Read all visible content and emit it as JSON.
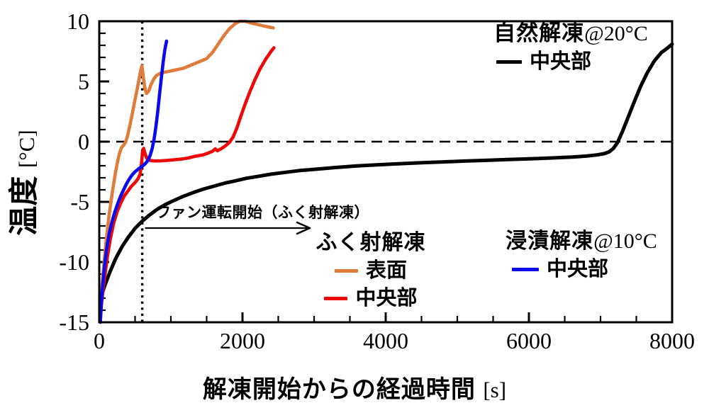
{
  "annotation": {
    "text": "ファン運転開始（ふく射解凍）"
  },
  "legends": {
    "natural": {
      "title_main": "自然解凍",
      "title_at": "@20°C",
      "item": "中央部",
      "color": "#000000"
    },
    "radiation": {
      "title": "ふく射解凍",
      "items": [
        {
          "label": "表面",
          "color": "#E07B3C"
        },
        {
          "label": "中央部",
          "color": "#EE0808"
        }
      ]
    },
    "immersion": {
      "title_main": "浸漬解凍",
      "title_at": "@10°C",
      "item": "中央部",
      "color": "#0A0AEC"
    }
  },
  "axis": {
    "xlabel_main": "解凍開始からの経過時間",
    "xlabel_unit": "[s]",
    "ylabel_main": "温度",
    "ylabel_unit": "[°C]"
  },
  "chart_data": {
    "type": "line",
    "title": "",
    "xlabel": "解凍開始からの経過時間 [s]",
    "ylabel": "温度 [°C]",
    "xlim": [
      0,
      8000
    ],
    "ylim": [
      -15,
      10
    ],
    "xticks": [
      0,
      2000,
      4000,
      6000,
      8000
    ],
    "xtick_minor_step": 500,
    "yticks": [
      10,
      5,
      0,
      -5,
      -10,
      -15
    ],
    "ytick_minor_step": 1,
    "grid": false,
    "zero_line": {
      "y": 0,
      "style": "dashed"
    },
    "event_line": {
      "x": 600,
      "style": "dotted",
      "label": "ファン運転開始（ふく射解凍）"
    },
    "legend_position": "inside",
    "series": [
      {
        "name": "自然解凍@20°C 中央部",
        "color": "#000000",
        "points": [
          [
            30,
            -12.8
          ],
          [
            80,
            -11.9
          ],
          [
            150,
            -10.8
          ],
          [
            230,
            -9.7
          ],
          [
            320,
            -8.7
          ],
          [
            410,
            -7.9
          ],
          [
            500,
            -7.2
          ],
          [
            600,
            -6.6
          ],
          [
            700,
            -6.1
          ],
          [
            800,
            -5.65
          ],
          [
            900,
            -5.3
          ],
          [
            1000,
            -5.0
          ],
          [
            1150,
            -4.6
          ],
          [
            1300,
            -4.25
          ],
          [
            1450,
            -3.95
          ],
          [
            1600,
            -3.7
          ],
          [
            1750,
            -3.45
          ],
          [
            1900,
            -3.25
          ],
          [
            2050,
            -3.05
          ],
          [
            2200,
            -2.9
          ],
          [
            2400,
            -2.7
          ],
          [
            2600,
            -2.55
          ],
          [
            2800,
            -2.4
          ],
          [
            3000,
            -2.3
          ],
          [
            3300,
            -2.15
          ],
          [
            3600,
            -2.02
          ],
          [
            3900,
            -1.92
          ],
          [
            4200,
            -1.83
          ],
          [
            4500,
            -1.75
          ],
          [
            4800,
            -1.68
          ],
          [
            5100,
            -1.61
          ],
          [
            5400,
            -1.55
          ],
          [
            5700,
            -1.49
          ],
          [
            6000,
            -1.43
          ],
          [
            6300,
            -1.36
          ],
          [
            6600,
            -1.28
          ],
          [
            6800,
            -1.2
          ],
          [
            6950,
            -1.1
          ],
          [
            7050,
            -1.0
          ],
          [
            7120,
            -0.85
          ],
          [
            7180,
            -0.55
          ],
          [
            7240,
            -0.05
          ],
          [
            7310,
            0.9
          ],
          [
            7390,
            2.1
          ],
          [
            7470,
            3.3
          ],
          [
            7560,
            4.6
          ],
          [
            7650,
            5.7
          ],
          [
            7750,
            6.7
          ],
          [
            7850,
            7.4
          ],
          [
            7930,
            7.75
          ],
          [
            8000,
            8.1
          ]
        ]
      },
      {
        "name": "ふく射解凍 表面",
        "color": "#E07B3C",
        "points": [
          [
            20,
            -13.0
          ],
          [
            60,
            -10.5
          ],
          [
            100,
            -8.0
          ],
          [
            140,
            -6.0
          ],
          [
            180,
            -4.3
          ],
          [
            220,
            -2.8
          ],
          [
            250,
            -1.8
          ],
          [
            280,
            -1.0
          ],
          [
            310,
            -0.5
          ],
          [
            340,
            -0.3
          ],
          [
            370,
            0.0
          ],
          [
            400,
            0.6
          ],
          [
            430,
            1.4
          ],
          [
            460,
            2.3
          ],
          [
            490,
            3.2
          ],
          [
            520,
            4.1
          ],
          [
            550,
            5.0
          ],
          [
            575,
            5.8
          ],
          [
            595,
            6.3
          ],
          [
            615,
            5.4
          ],
          [
            635,
            4.5
          ],
          [
            660,
            4.0
          ],
          [
            690,
            4.2
          ],
          [
            720,
            4.7
          ],
          [
            760,
            5.2
          ],
          [
            800,
            5.5
          ],
          [
            860,
            5.7
          ],
          [
            940,
            5.8
          ],
          [
            1020,
            5.9
          ],
          [
            1100,
            6.0
          ],
          [
            1180,
            6.1
          ],
          [
            1260,
            6.3
          ],
          [
            1340,
            6.5
          ],
          [
            1420,
            6.7
          ],
          [
            1500,
            6.9
          ],
          [
            1580,
            7.4
          ],
          [
            1660,
            8.1
          ],
          [
            1740,
            8.8
          ],
          [
            1820,
            9.4
          ],
          [
            1900,
            9.8
          ],
          [
            1960,
            10.0
          ],
          [
            2040,
            10.0
          ],
          [
            2120,
            9.85
          ],
          [
            2200,
            9.75
          ],
          [
            2300,
            9.6
          ],
          [
            2430,
            9.45
          ]
        ]
      },
      {
        "name": "ふく射解凍 中央部",
        "color": "#EE0808",
        "points": [
          [
            30,
            -13.5
          ],
          [
            70,
            -11.5
          ],
          [
            110,
            -9.7
          ],
          [
            150,
            -8.2
          ],
          [
            200,
            -6.8
          ],
          [
            250,
            -5.8
          ],
          [
            300,
            -5.1
          ],
          [
            350,
            -4.5
          ],
          [
            400,
            -4.1
          ],
          [
            450,
            -3.7
          ],
          [
            500,
            -3.4
          ],
          [
            540,
            -3.1
          ],
          [
            570,
            -2.7
          ],
          [
            590,
            -1.8
          ],
          [
            605,
            -0.8
          ],
          [
            620,
            -0.55
          ],
          [
            640,
            -1.0
          ],
          [
            665,
            -1.4
          ],
          [
            700,
            -1.55
          ],
          [
            760,
            -1.6
          ],
          [
            850,
            -1.6
          ],
          [
            950,
            -1.55
          ],
          [
            1050,
            -1.5
          ],
          [
            1150,
            -1.45
          ],
          [
            1250,
            -1.35
          ],
          [
            1350,
            -1.2
          ],
          [
            1450,
            -1.1
          ],
          [
            1520,
            -0.95
          ],
          [
            1580,
            -0.8
          ],
          [
            1620,
            -0.6
          ],
          [
            1650,
            -0.75
          ],
          [
            1700,
            -0.6
          ],
          [
            1760,
            -0.35
          ],
          [
            1820,
            -0.05
          ],
          [
            1870,
            0.4
          ],
          [
            1920,
            1.1
          ],
          [
            1970,
            2.0
          ],
          [
            2030,
            3.0
          ],
          [
            2100,
            4.1
          ],
          [
            2170,
            5.1
          ],
          [
            2250,
            6.1
          ],
          [
            2330,
            6.9
          ],
          [
            2400,
            7.5
          ],
          [
            2440,
            7.8
          ]
        ]
      },
      {
        "name": "浸漬解凍@10°C 中央部",
        "color": "#0A0AEC",
        "points": [
          [
            15,
            -15.0
          ],
          [
            40,
            -12.5
          ],
          [
            70,
            -10.5
          ],
          [
            100,
            -9.0
          ],
          [
            140,
            -7.6
          ],
          [
            180,
            -6.6
          ],
          [
            220,
            -5.8
          ],
          [
            260,
            -5.1
          ],
          [
            300,
            -4.5
          ],
          [
            340,
            -4.0
          ],
          [
            380,
            -3.5
          ],
          [
            420,
            -3.1
          ],
          [
            460,
            -2.75
          ],
          [
            500,
            -2.5
          ],
          [
            550,
            -2.25
          ],
          [
            600,
            -2.05
          ],
          [
            640,
            -1.85
          ],
          [
            680,
            -1.55
          ],
          [
            710,
            -1.15
          ],
          [
            740,
            -0.55
          ],
          [
            765,
            0.2
          ],
          [
            790,
            1.2
          ],
          [
            815,
            2.4
          ],
          [
            840,
            3.8
          ],
          [
            865,
            5.2
          ],
          [
            890,
            6.5
          ],
          [
            915,
            7.6
          ],
          [
            940,
            8.35
          ]
        ]
      }
    ]
  }
}
